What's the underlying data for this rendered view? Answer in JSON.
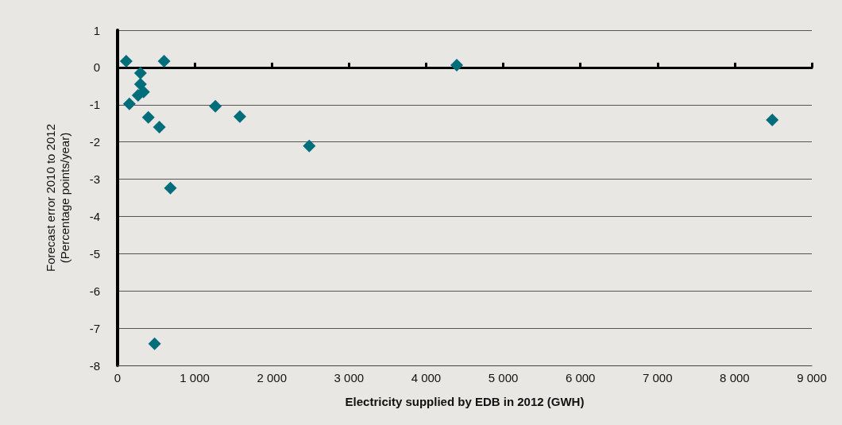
{
  "chart_data": {
    "type": "scatter",
    "xlabel": "Electricity supplied by EDB in 2012 (GWH)",
    "ylabel": "Forecast error 2010 to 2012\n(Percentage points/year)",
    "marker": "diamond",
    "grid": "y",
    "xlim": [
      0,
      9000
    ],
    "xticks": [
      0,
      {
        "value": 1000,
        "label": "1 000"
      },
      {
        "value": 2000,
        "label": "2 000"
      },
      {
        "value": 3000,
        "label": "3 000"
      },
      {
        "value": 4000,
        "label": "4 000"
      },
      {
        "value": 5000,
        "label": "5 000"
      },
      {
        "value": 6000,
        "label": "6 000"
      },
      {
        "value": 7000,
        "label": "7 000"
      },
      {
        "value": 8000,
        "label": "8 000"
      },
      {
        "value": 9000,
        "label": "9 000"
      }
    ],
    "ylim": [
      -8,
      1
    ],
    "yticks": [
      -8,
      -7,
      -6,
      -5,
      -4,
      -3,
      -2,
      -1,
      0,
      1
    ],
    "series": [
      {
        "color": "#006d7a",
        "x": [
          112,
          603,
          297,
          297,
          337,
          266,
          153,
          399,
          542,
          685,
          480,
          1268,
          1585,
          2485,
          4397,
          8487
        ],
        "values": [
          0.17,
          0.17,
          -0.15,
          -0.45,
          -0.66,
          -0.75,
          -0.98,
          -1.34,
          -1.6,
          -3.24,
          -7.42,
          -1.04,
          -1.32,
          -2.11,
          0.06,
          -1.41
        ]
      }
    ]
  }
}
